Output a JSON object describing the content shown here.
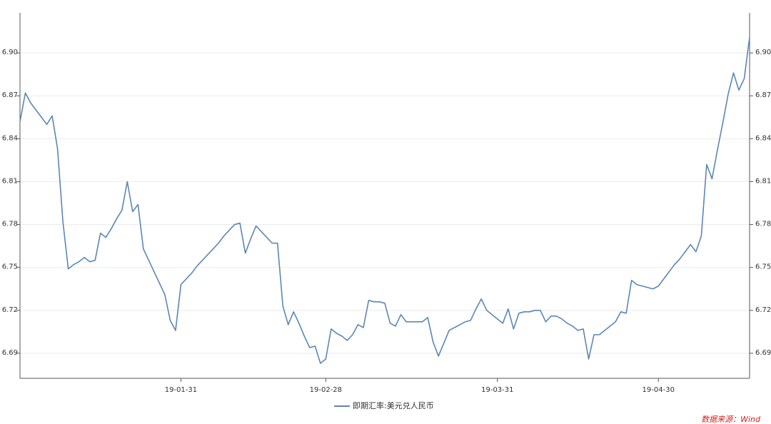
{
  "chart_data": {
    "type": "line",
    "categories": [
      null,
      null,
      null,
      null,
      null,
      null,
      null,
      null,
      null,
      null,
      null,
      null,
      null,
      null,
      null,
      null,
      null,
      null,
      null,
      null,
      null,
      null,
      null,
      null,
      null,
      null,
      null,
      null,
      null,
      null,
      "19-01-31",
      null,
      null,
      null,
      null,
      null,
      null,
      null,
      null,
      null,
      null,
      null,
      null,
      null,
      null,
      null,
      null,
      null,
      null,
      null,
      null,
      null,
      null,
      null,
      null,
      null,
      null,
      "19-02-28",
      null,
      null,
      null,
      null,
      null,
      null,
      null,
      null,
      null,
      null,
      null,
      null,
      null,
      null,
      null,
      null,
      null,
      null,
      null,
      null,
      null,
      null,
      null,
      null,
      null,
      null,
      null,
      null,
      null,
      null,
      null,
      "19-03-31",
      null,
      null,
      null,
      null,
      null,
      null,
      null,
      null,
      null,
      null,
      null,
      null,
      null,
      null,
      null,
      null,
      null,
      null,
      null,
      null,
      null,
      null,
      null,
      null,
      null,
      null,
      null,
      null,
      null,
      "19-04-30",
      null,
      null,
      null,
      null,
      null,
      null,
      null,
      null,
      null,
      null,
      null,
      null,
      null,
      null,
      null,
      null,
      null
    ],
    "series": [
      {
        "name": "即期汇率:美元兑人民币",
        "color": "#5b87b5",
        "values": [
          6.852,
          6.872,
          6.865,
          6.86,
          6.855,
          6.85,
          6.856,
          6.833,
          6.782,
          6.749,
          6.752,
          6.754,
          6.757,
          6.754,
          6.755,
          6.774,
          6.771,
          6.777,
          6.784,
          6.79,
          6.81,
          6.789,
          6.794,
          6.763,
          6.755,
          6.747,
          6.739,
          6.731,
          6.713,
          6.706,
          6.738,
          6.742,
          6.746,
          6.751,
          6.755,
          6.759,
          6.763,
          6.767,
          6.772,
          6.776,
          6.78,
          6.781,
          6.76,
          6.77,
          6.779,
          6.775,
          6.771,
          6.767,
          6.767,
          6.723,
          6.71,
          6.719,
          6.711,
          6.702,
          6.694,
          6.695,
          6.683,
          6.686,
          6.707,
          6.704,
          6.702,
          6.699,
          6.703,
          6.71,
          6.708,
          6.727,
          6.726,
          6.726,
          6.725,
          6.711,
          6.709,
          6.717,
          6.712,
          6.712,
          6.712,
          6.712,
          6.715,
          6.698,
          6.688,
          6.697,
          6.706,
          6.708,
          6.71,
          6.712,
          6.713,
          6.721,
          6.728,
          6.72,
          6.717,
          6.714,
          6.711,
          6.721,
          6.707,
          6.718,
          6.719,
          6.719,
          6.72,
          6.72,
          6.712,
          6.716,
          6.716,
          6.714,
          6.711,
          6.709,
          6.706,
          6.707,
          6.686,
          6.703,
          6.703,
          6.706,
          6.709,
          6.712,
          6.719,
          6.718,
          6.741,
          6.738,
          6.737,
          6.736,
          6.735,
          6.737,
          6.742,
          6.747,
          6.752,
          6.756,
          6.761,
          6.766,
          6.761,
          6.772,
          6.822,
          6.812,
          6.832,
          6.851,
          6.871,
          6.886,
          6.874,
          6.882,
          6.911
        ]
      }
    ],
    "ylim": [
      6.6725,
      6.928
    ],
    "yticks": [
      6.69,
      6.72,
      6.75,
      6.78,
      6.81,
      6.84,
      6.87,
      {
        "value": 6.9,
        "label": "6.90"
      }
    ],
    "y2lim": [
      6.6725,
      6.928
    ],
    "y2ticks": [
      6.69,
      6.72,
      6.75,
      6.78,
      6.81,
      6.84,
      6.87,
      {
        "value": 6.9,
        "label": "6.90"
      }
    ],
    "grid": true,
    "legend": "bottom",
    "annotation": "数据来源：Wind"
  }
}
